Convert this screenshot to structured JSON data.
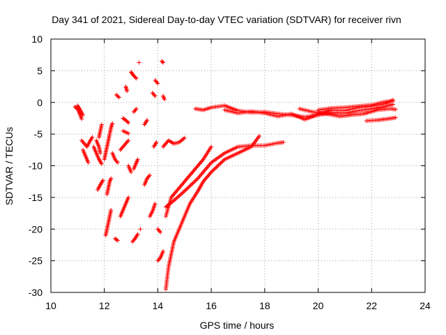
{
  "chart_data": {
    "type": "scatter",
    "title": "Day 341 of 2021, Sidereal Day-to-day VTEC variation (SDTVAR) for receiver rivn",
    "xlabel": "GPS time / hours",
    "ylabel": "SDTVAR / TECUs",
    "xlim": [
      10,
      24
    ],
    "ylim": [
      -30,
      10
    ],
    "xticks": [
      10,
      12,
      14,
      16,
      18,
      20,
      22,
      24
    ],
    "yticks": [
      10,
      5,
      0,
      -5,
      -10,
      -15,
      -20,
      -25,
      -30
    ],
    "grid": true,
    "marker": "plus",
    "marker_color": "#ff0000",
    "series": [
      {
        "name": "tracks",
        "segments": [
          [
            [
              10.9,
              -0.7
            ],
            [
              11.0,
              -1.0
            ],
            [
              11.05,
              -1.5
            ],
            [
              11.1,
              -2.0
            ],
            [
              11.15,
              -2.6
            ]
          ],
          [
            [
              11.0,
              -0.5
            ],
            [
              11.1,
              -1.2
            ],
            [
              11.2,
              -2.0
            ]
          ],
          [
            [
              11.15,
              -6.0
            ],
            [
              11.25,
              -6.5
            ],
            [
              11.35,
              -7.0
            ],
            [
              11.45,
              -6.2
            ],
            [
              11.55,
              -5.5
            ]
          ],
          [
            [
              11.2,
              -7.5
            ],
            [
              11.3,
              -8.5
            ],
            [
              11.4,
              -9.5
            ]
          ],
          [
            [
              11.6,
              -7.0
            ],
            [
              11.7,
              -8.0
            ],
            [
              11.8,
              -9.0
            ],
            [
              11.9,
              -9.7
            ]
          ],
          [
            [
              11.8,
              -5.5
            ],
            [
              11.85,
              -4.5
            ],
            [
              11.9,
              -3.5
            ]
          ],
          [
            [
              11.75,
              -13.8
            ],
            [
              11.85,
              -13.0
            ],
            [
              11.95,
              -12.3
            ]
          ],
          [
            [
              11.7,
              -6.0
            ],
            [
              11.8,
              -7.0
            ],
            [
              11.85,
              -8.0
            ]
          ],
          [
            [
              12.0,
              -9.0
            ],
            [
              12.05,
              -8.0
            ],
            [
              12.1,
              -7.0
            ],
            [
              12.15,
              -6.0
            ],
            [
              12.2,
              -5.0
            ],
            [
              12.25,
              -4.0
            ],
            [
              12.3,
              -3.3
            ]
          ],
          [
            [
              12.05,
              -21.0
            ],
            [
              12.1,
              -20.0
            ],
            [
              12.15,
              -19.0
            ],
            [
              12.2,
              -18.0
            ],
            [
              12.25,
              -17.0
            ]
          ],
          [
            [
              12.1,
              -14.5
            ],
            [
              12.15,
              -13.5
            ],
            [
              12.2,
              -12.5
            ],
            [
              12.25,
              -12.0
            ]
          ],
          [
            [
              12.3,
              -8.0
            ],
            [
              12.4,
              -9.0
            ],
            [
              12.5,
              -9.5
            ]
          ],
          [
            [
              12.4,
              -21.5
            ],
            [
              12.5,
              -21.8
            ]
          ],
          [
            [
              12.45,
              1.2
            ],
            [
              12.55,
              0.8
            ]
          ],
          [
            [
              12.6,
              -18.0
            ],
            [
              12.7,
              -17.0
            ],
            [
              12.8,
              -16.0
            ],
            [
              12.9,
              -15.0
            ]
          ],
          [
            [
              12.7,
              -4.5
            ],
            [
              12.8,
              -4.7
            ],
            [
              12.9,
              -4.9
            ]
          ],
          [
            [
              12.6,
              -7.5
            ],
            [
              12.7,
              -7.0
            ],
            [
              12.8,
              -6.5
            ],
            [
              12.9,
              -6.0
            ]
          ],
          [
            [
              12.7,
              -2.5
            ],
            [
              12.8,
              -2.8
            ],
            [
              12.9,
              -3.2
            ]
          ],
          [
            [
              12.8,
              2.5
            ],
            [
              12.85,
              1.8
            ]
          ],
          [
            [
              12.9,
              -10.0
            ],
            [
              13.0,
              -11.0
            ]
          ],
          [
            [
              13.0,
              4.8
            ],
            [
              13.1,
              4.2
            ],
            [
              13.2,
              3.8
            ]
          ],
          [
            [
              13.05,
              -22.0
            ],
            [
              13.15,
              -21.5
            ],
            [
              13.25,
              -20.8
            ]
          ],
          [
            [
              13.1,
              -1.5
            ],
            [
              13.2,
              -1.0
            ]
          ],
          [
            [
              13.1,
              -10.5
            ],
            [
              13.2,
              -9.5
            ],
            [
              13.25,
              -9.0
            ]
          ],
          [
            [
              13.3,
              6.3
            ]
          ],
          [
            [
              13.35,
              -20.0
            ]
          ],
          [
            [
              13.5,
              -13.0
            ],
            [
              13.6,
              -12.0
            ],
            [
              13.7,
              -11.5
            ]
          ],
          [
            [
              13.5,
              -3.5
            ],
            [
              13.6,
              -2.8
            ]
          ],
          [
            [
              13.7,
              -18.0
            ],
            [
              13.8,
              -17.2
            ],
            [
              13.9,
              -16.0
            ]
          ],
          [
            [
              13.8,
              1.5
            ],
            [
              13.9,
              1.0
            ]
          ],
          [
            [
              13.85,
              -7.0
            ],
            [
              13.95,
              -6.3
            ]
          ],
          [
            [
              13.9,
              3.5
            ],
            [
              14.0,
              3.0
            ]
          ],
          [
            [
              14.0,
              -25.0
            ],
            [
              14.1,
              -24.5
            ],
            [
              14.2,
              -23.5
            ]
          ],
          [
            [
              14.0,
              -20.0
            ],
            [
              14.1,
              -20.5
            ]
          ],
          [
            [
              14.15,
              6.5
            ],
            [
              14.2,
              6.3
            ]
          ],
          [
            [
              14.2,
              1.0
            ],
            [
              14.25,
              0.5
            ]
          ],
          [
            [
              14.3,
              -29.5
            ],
            [
              14.4,
              -26.0
            ],
            [
              14.5,
              -24.0
            ],
            [
              14.6,
              -22.0
            ],
            [
              14.8,
              -20.0
            ],
            [
              15.0,
              -18.0
            ],
            [
              15.2,
              -16.0
            ],
            [
              15.5,
              -14.0
            ],
            [
              15.7,
              -12.5
            ],
            [
              16.0,
              -11.0
            ],
            [
              16.5,
              -9.0
            ],
            [
              17.0,
              -8.0
            ],
            [
              17.5,
              -7.0
            ],
            [
              17.8,
              -5.3
            ]
          ],
          [
            [
              14.2,
              -7.0
            ],
            [
              14.4,
              -6.0
            ],
            [
              14.6,
              -6.5
            ],
            [
              14.8,
              -6.3
            ],
            [
              15.0,
              -5.6
            ]
          ],
          [
            [
              14.3,
              -18.0
            ],
            [
              14.5,
              -15.0
            ],
            [
              14.8,
              -13.5
            ],
            [
              15.0,
              -12.5
            ],
            [
              15.3,
              -11.0
            ],
            [
              15.5,
              -10.0
            ],
            [
              15.7,
              -9.0
            ],
            [
              16.0,
              -7.0
            ]
          ],
          [
            [
              14.3,
              -16.5
            ],
            [
              14.6,
              -15.5
            ],
            [
              15.0,
              -14.0
            ],
            [
              15.5,
              -12.0
            ],
            [
              16.0,
              -9.5
            ],
            [
              16.5,
              -8.0
            ],
            [
              17.0,
              -7.0
            ],
            [
              17.5,
              -6.8
            ],
            [
              18.0,
              -6.8
            ],
            [
              18.5,
              -6.4
            ],
            [
              18.7,
              -6.3
            ]
          ],
          [
            [
              15.4,
              -1.0
            ],
            [
              15.7,
              -1.2
            ],
            [
              16.0,
              -0.8
            ],
            [
              16.5,
              -0.5
            ],
            [
              17.0,
              -1.3
            ],
            [
              17.5,
              -1.6
            ],
            [
              18.0,
              -1.5
            ],
            [
              18.5,
              -1.8
            ],
            [
              19.0,
              -2.0
            ],
            [
              19.5,
              -2.3
            ],
            [
              20.0,
              -2.0
            ],
            [
              20.5,
              -1.6
            ],
            [
              21.0,
              -1.7
            ],
            [
              21.5,
              -1.3
            ],
            [
              22.0,
              -1.0
            ],
            [
              22.5,
              -0.6
            ],
            [
              22.8,
              -0.3
            ]
          ],
          [
            [
              16.5,
              -1.2
            ],
            [
              17.0,
              -1.7
            ],
            [
              17.5,
              -1.4
            ],
            [
              18.0,
              -1.7
            ],
            [
              18.5,
              -2.2
            ],
            [
              19.0,
              -1.8
            ],
            [
              19.5,
              -2.7
            ],
            [
              20.0,
              -1.9
            ],
            [
              20.5,
              -1.2
            ],
            [
              21.0,
              -1.3
            ],
            [
              21.5,
              -0.8
            ],
            [
              22.0,
              -0.6
            ],
            [
              22.5,
              -0.2
            ],
            [
              22.8,
              0.4
            ]
          ],
          [
            [
              19.3,
              -1.0
            ],
            [
              19.8,
              -1.5
            ],
            [
              20.3,
              -1.8
            ],
            [
              20.8,
              -2.2
            ],
            [
              21.2,
              -2.0
            ],
            [
              21.7,
              -1.8
            ],
            [
              22.2,
              -1.2
            ],
            [
              22.7,
              -1.0
            ],
            [
              22.9,
              -1.1
            ]
          ],
          [
            [
              21.8,
              -2.9
            ],
            [
              22.2,
              -2.8
            ],
            [
              22.6,
              -2.6
            ],
            [
              22.9,
              -2.4
            ]
          ],
          [
            [
              20.0,
              -1.2
            ],
            [
              20.5,
              -0.9
            ],
            [
              21.0,
              -0.8
            ],
            [
              21.5,
              -0.6
            ],
            [
              22.0,
              -0.4
            ],
            [
              22.5,
              0.1
            ],
            [
              22.8,
              0.2
            ]
          ]
        ]
      }
    ]
  }
}
